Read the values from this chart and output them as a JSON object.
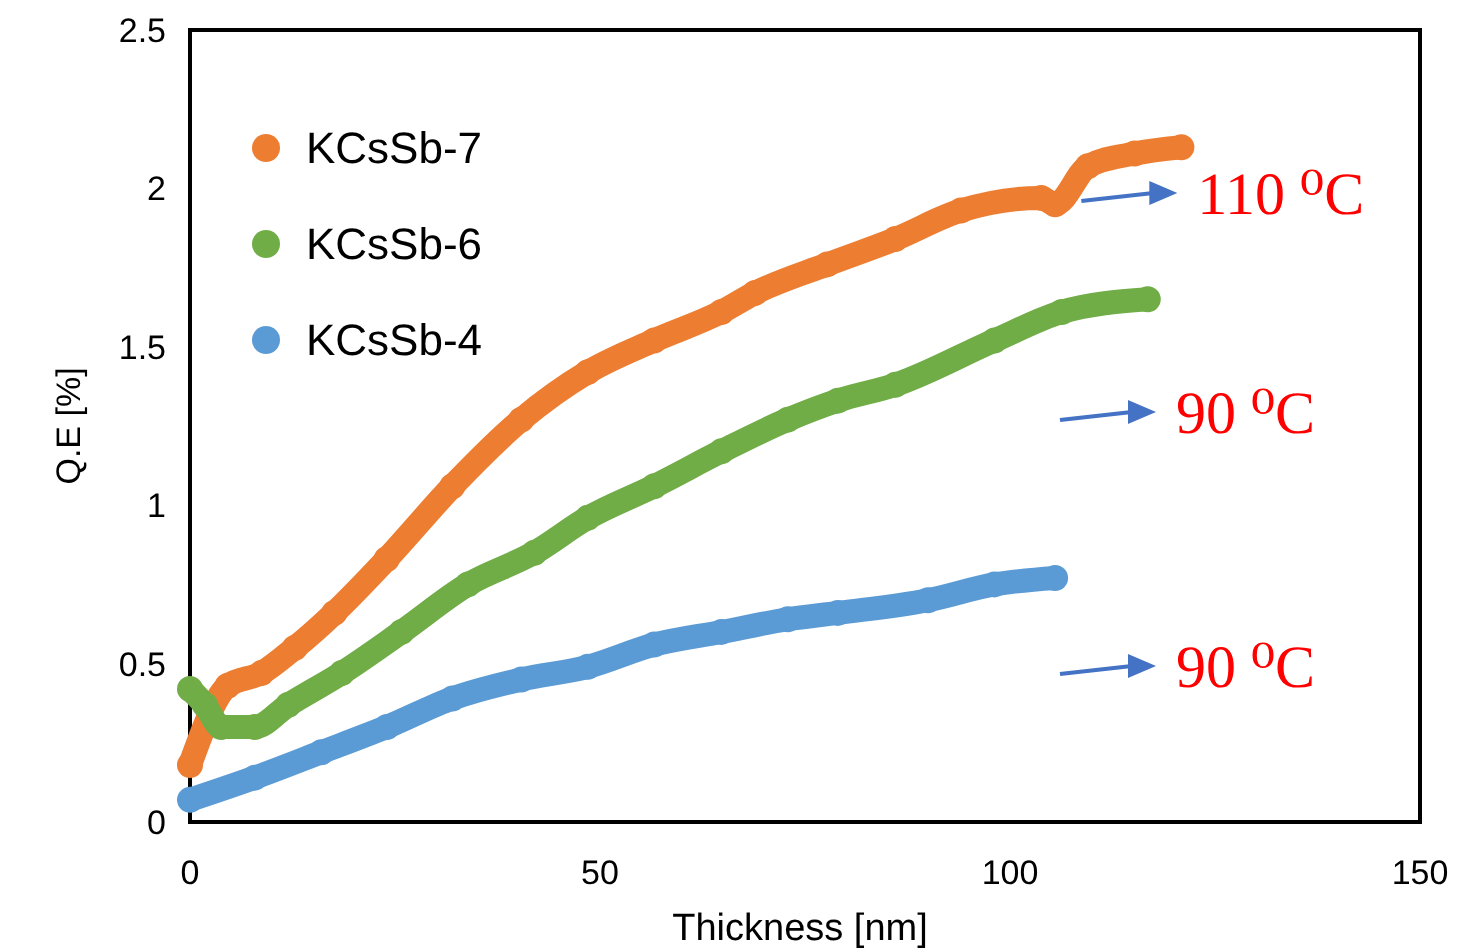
{
  "chart_data": {
    "type": "line",
    "xlabel": "Thickness [nm]",
    "ylabel": "Q.E [%]",
    "xlim": [
      0,
      150
    ],
    "xticks": [
      0,
      50,
      100,
      150
    ],
    "ylim": [
      0,
      2.5
    ],
    "yticks": [
      0,
      0.5,
      1,
      1.5,
      2,
      2.5
    ],
    "grid": false,
    "legend": "top left",
    "marker": "circle",
    "line_style": "solid",
    "series": [
      {
        "name": "KCsSb-7",
        "color": "#ed7d31",
        "x": [
          0,
          4.6,
          8.7,
          12.8,
          17.6,
          24,
          32,
          40.4,
          48.5,
          56.6,
          64.8,
          68.9,
          77.7,
          86,
          94,
          103.8,
          105.5,
          109.5,
          115.2,
          120.9
        ],
        "values": [
          0.18,
          0.43,
          0.47,
          0.55,
          0.66,
          0.83,
          1.06,
          1.27,
          1.42,
          1.52,
          1.61,
          1.67,
          1.76,
          1.84,
          1.93,
          1.97,
          1.95,
          2.07,
          2.11,
          2.13
        ]
      },
      {
        "name": "KCsSb-6",
        "color": "#70ad47",
        "x": [
          0,
          1.8,
          3.8,
          7.9,
          12,
          18.5,
          25.8,
          33.9,
          42,
          48.5,
          56.6,
          64.8,
          72.9,
          79,
          86,
          98.1,
          106.3,
          116.8
        ],
        "values": [
          0.42,
          0.37,
          0.3,
          0.3,
          0.37,
          0.47,
          0.6,
          0.75,
          0.85,
          0.96,
          1.06,
          1.17,
          1.27,
          1.33,
          1.38,
          1.52,
          1.61,
          1.65
        ]
      },
      {
        "name": "KCsSb-4",
        "color": "#5b9bd5",
        "x": [
          0,
          7.9,
          16,
          24,
          32,
          40.4,
          48.5,
          56.6,
          64.8,
          72.9,
          79,
          90,
          98.1,
          105.5
        ],
        "values": [
          0.07,
          0.14,
          0.22,
          0.3,
          0.39,
          0.45,
          0.49,
          0.56,
          0.6,
          0.64,
          0.66,
          0.7,
          0.75,
          0.77
        ]
      }
    ],
    "annotations": [
      {
        "text": "110 ⁰C",
        "x": 108.7,
        "y": 1.96
      },
      "90 ⁰C",
      "90 ⁰C"
    ]
  }
}
